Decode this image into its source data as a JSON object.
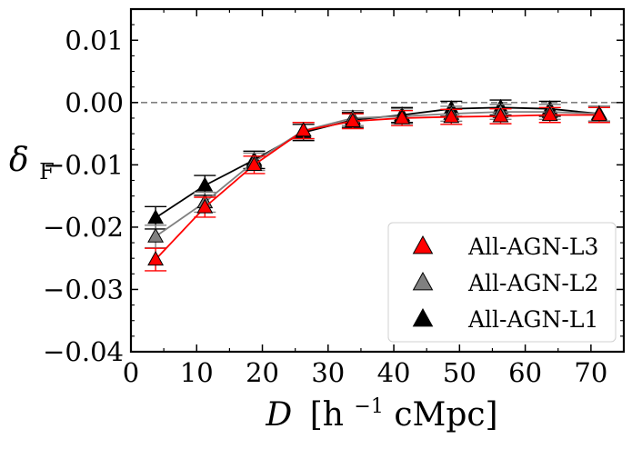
{
  "chart_data": {
    "type": "line",
    "xlabel": "D [h⁻¹cMpc]",
    "xlabel_main": "D",
    "xlabel_unit_open": "[h",
    "xlabel_unit_sup": "−1",
    "xlabel_unit_close": "cMpc]",
    "ylabel": "δF",
    "ylabel_main": "δ",
    "ylabel_sub": "F",
    "xlim": [
      0,
      75
    ],
    "ylim": [
      -0.04,
      0.015
    ],
    "xticks": [
      0,
      10,
      20,
      30,
      40,
      50,
      60,
      70
    ],
    "xtick_labels": [
      "0",
      "10",
      "20",
      "30",
      "40",
      "50",
      "60",
      "70"
    ],
    "yticks": [
      0.01,
      0.0,
      -0.01,
      -0.02,
      -0.03,
      -0.04
    ],
    "ytick_labels": [
      "0.01",
      "0.00",
      "−0.01",
      "−0.02",
      "−0.03",
      "−0.04"
    ],
    "reference_line": {
      "y": 0.0,
      "style": "dashed",
      "color": "#808080"
    },
    "grid": false,
    "legend_position": "lower-right",
    "x": [
      3.75,
      11.25,
      18.75,
      26.25,
      33.75,
      41.25,
      48.75,
      56.25,
      63.75,
      71.25
    ],
    "series": [
      {
        "name": "All-AGN-L1",
        "color": "#000000",
        "marker": "triangle",
        "values": [
          -0.0185,
          -0.0133,
          -0.0092,
          -0.0048,
          -0.0028,
          -0.002,
          -0.001,
          -0.0008,
          -0.001,
          -0.0018
        ],
        "errors": [
          0.0018,
          0.0016,
          0.0014,
          0.0013,
          0.0012,
          0.0012,
          0.0012,
          0.0012,
          0.0012,
          0.0012
        ]
      },
      {
        "name": "All-AGN-L2",
        "color": "#808080",
        "marker": "triangle",
        "values": [
          -0.0215,
          -0.016,
          -0.0095,
          -0.0045,
          -0.0025,
          -0.0022,
          -0.0018,
          -0.0015,
          -0.0015,
          -0.0018
        ],
        "errors": [
          0.0018,
          0.0016,
          0.0014,
          0.0013,
          0.0012,
          0.0012,
          0.0012,
          0.0012,
          0.0012,
          0.0012
        ]
      },
      {
        "name": "All-AGN-L3",
        "color": "#ff0000",
        "marker": "triangle",
        "values": [
          -0.0252,
          -0.0168,
          -0.01,
          -0.0045,
          -0.003,
          -0.0025,
          -0.0023,
          -0.0022,
          -0.002,
          -0.002
        ],
        "errors": [
          0.0018,
          0.0016,
          0.0014,
          0.0013,
          0.0012,
          0.0012,
          0.0012,
          0.0012,
          0.0012,
          0.0012
        ]
      }
    ],
    "legend_order": [
      "All-AGN-L3",
      "All-AGN-L2",
      "All-AGN-L1"
    ]
  }
}
